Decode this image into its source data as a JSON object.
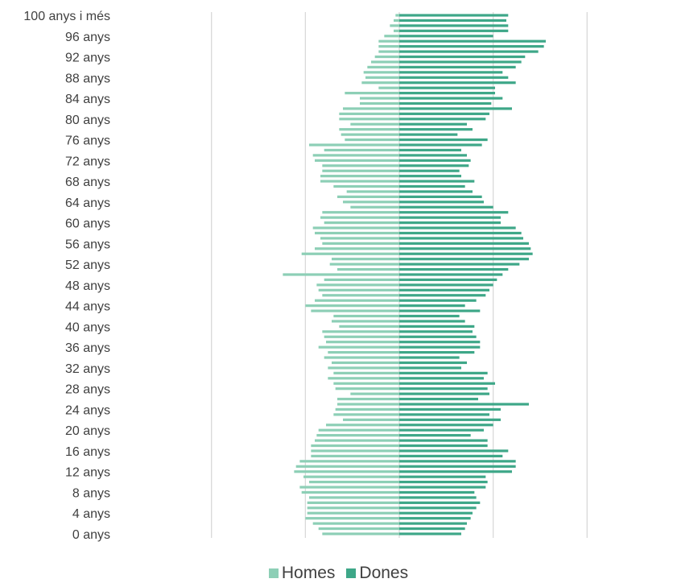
{
  "chart_data": {
    "type": "bar",
    "orientation": "horizontal",
    "layout": "population-pyramid",
    "title": "",
    "xlabel": "",
    "ylabel": "",
    "legend_position": "bottom",
    "grid": true,
    "age_labels": [
      "0 anys",
      "4 anys",
      "8 anys",
      "12 anys",
      "16 anys",
      "20 anys",
      "24 anys",
      "28 anys",
      "32 anys",
      "36 anys",
      "40 anys",
      "44 anys",
      "48 anys",
      "52 anys",
      "56 anys",
      "60 anys",
      "64 anys",
      "68 anys",
      "72 anys",
      "76 anys",
      "80 anys",
      "84 anys",
      "88 anys",
      "92 anys",
      "96 anys",
      "100 anys i més"
    ],
    "age_label_ages": [
      0,
      4,
      8,
      12,
      16,
      20,
      24,
      28,
      32,
      36,
      40,
      44,
      48,
      52,
      56,
      60,
      64,
      68,
      72,
      76,
      80,
      84,
      88,
      92,
      96,
      100
    ],
    "series": [
      {
        "name": "Homes",
        "color": "#8dcfb6",
        "side": "left",
        "values": [
          41,
          43,
          46,
          50,
          49,
          49,
          49,
          48,
          52,
          53,
          48,
          51,
          56,
          55,
          53,
          47,
          47,
          47,
          45,
          44,
          43,
          39,
          30,
          35,
          34,
          33,
          33,
          26,
          34,
          35,
          38,
          35,
          38,
          36,
          40,
          38,
          43,
          39,
          40,
          41,
          32,
          36,
          35,
          47,
          50,
          45,
          41,
          43,
          44,
          40,
          62,
          33,
          37,
          36,
          52,
          45,
          41,
          42,
          45,
          46,
          40,
          42,
          41,
          26,
          30,
          33,
          28,
          35,
          42,
          42,
          41,
          41,
          45,
          46,
          40,
          48,
          29,
          31,
          32,
          26,
          32,
          32,
          30,
          21,
          21,
          29,
          11,
          20,
          18,
          19,
          17,
          15,
          13,
          11,
          11,
          11,
          8,
          3,
          5,
          3,
          2
        ]
      },
      {
        "name": "Dones",
        "color": "#3ea788",
        "side": "right",
        "values": [
          33,
          35,
          36,
          38,
          39,
          41,
          43,
          41,
          40,
          46,
          47,
          46,
          60,
          62,
          62,
          55,
          58,
          47,
          47,
          38,
          45,
          50,
          54,
          48,
          54,
          69,
          42,
          48,
          47,
          51,
          45,
          47,
          33,
          36,
          32,
          40,
          43,
          43,
          41,
          39,
          40,
          35,
          32,
          43,
          35,
          41,
          46,
          48,
          50,
          52,
          55,
          58,
          64,
          69,
          71,
          70,
          69,
          66,
          65,
          62,
          54,
          54,
          58,
          50,
          45,
          44,
          39,
          35,
          40,
          33,
          32,
          37,
          38,
          36,
          33,
          44,
          47,
          31,
          39,
          36,
          46,
          48,
          60,
          49,
          55,
          51,
          51,
          62,
          58,
          55,
          62,
          65,
          67,
          74,
          77,
          78,
          50,
          58,
          58,
          57,
          58
        ]
      }
    ],
    "xlim": [
      -105,
      105
    ],
    "gridlines": [
      -100,
      -50,
      0,
      50,
      100
    ]
  }
}
